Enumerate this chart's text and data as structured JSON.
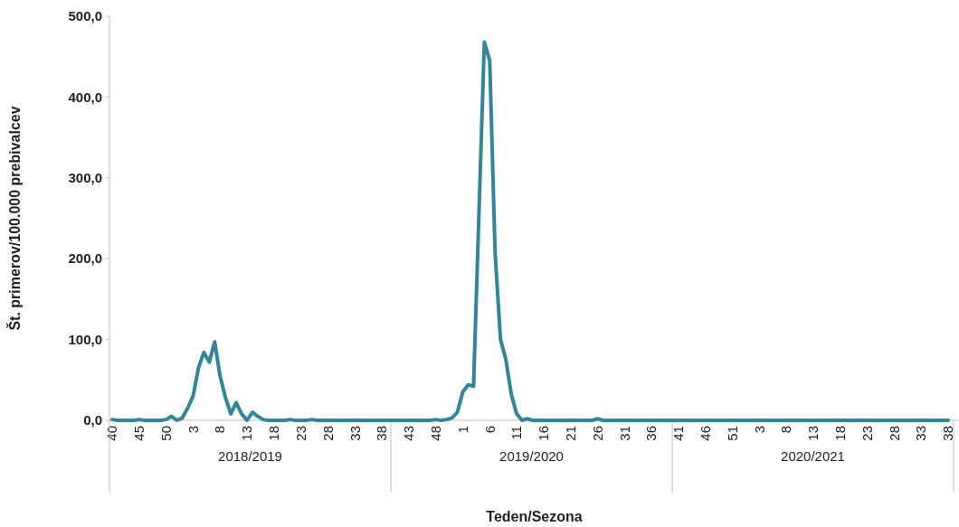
{
  "chart_data": {
    "type": "line",
    "ylabel": "Št. primerov/100.000 prebivalcev",
    "xlabel": "Teden/Sezona",
    "annotations": [
      "2018/2019",
      "2019/2020",
      "2020/2021"
    ],
    "categories": [
      "40",
      null,
      null,
      null,
      null,
      "45",
      null,
      null,
      null,
      null,
      "50",
      null,
      null,
      null,
      null,
      "3",
      null,
      null,
      null,
      null,
      "8",
      null,
      null,
      null,
      null,
      "13",
      null,
      null,
      null,
      null,
      "18",
      null,
      null,
      null,
      null,
      "23",
      null,
      null,
      null,
      null,
      "28",
      null,
      null,
      null,
      null,
      "33",
      null,
      null,
      null,
      null,
      "38",
      null,
      null,
      null,
      null,
      "43",
      null,
      null,
      null,
      null,
      "48",
      null,
      null,
      null,
      null,
      "1",
      null,
      null,
      null,
      null,
      "6",
      null,
      null,
      null,
      null,
      "11",
      null,
      null,
      null,
      null,
      "16",
      null,
      null,
      null,
      null,
      "21",
      null,
      null,
      null,
      null,
      "26",
      null,
      null,
      null,
      null,
      "31",
      null,
      null,
      null,
      null,
      "36",
      null,
      null,
      null,
      null,
      "41",
      null,
      null,
      null,
      null,
      "46",
      null,
      null,
      null,
      null,
      "51",
      null,
      null,
      null,
      null,
      "3",
      null,
      null,
      null,
      null,
      "8",
      null,
      null,
      null,
      null,
      "13",
      null,
      null,
      null,
      null,
      "18",
      null,
      null,
      null,
      null,
      "23",
      null,
      null,
      null,
      null,
      "28",
      null,
      null,
      null,
      null,
      "33",
      null,
      null,
      null,
      null,
      "38"
    ],
    "series": [
      {
        "color": "#31869b",
        "values": [
          1,
          0,
          0,
          0,
          0,
          1,
          0,
          0,
          0,
          0,
          1,
          5,
          0,
          3,
          15,
          30,
          65,
          84,
          72,
          97,
          55,
          28,
          8,
          22,
          8,
          0,
          10,
          5,
          1,
          0,
          0,
          0,
          0,
          1,
          0,
          0,
          0,
          1,
          0,
          0,
          0,
          0,
          0,
          0,
          0,
          0,
          0,
          0,
          0,
          0,
          0,
          0,
          0,
          0,
          0,
          0,
          0,
          0,
          0,
          0,
          1,
          0,
          1,
          3,
          10,
          35,
          44,
          42,
          255,
          468,
          445,
          207,
          100,
          75,
          32,
          8,
          0,
          2,
          0,
          0,
          0,
          0,
          0,
          0,
          0,
          0,
          0,
          0,
          0,
          0,
          2,
          0,
          0,
          0,
          0,
          0,
          0,
          0,
          0,
          0,
          0,
          0,
          0,
          0,
          0,
          0,
          0,
          0,
          0,
          0,
          0,
          0,
          0,
          0,
          0,
          0,
          0,
          0,
          0,
          0,
          0,
          0,
          0,
          0,
          0,
          0,
          0,
          0,
          0,
          0,
          0,
          0,
          0,
          0,
          0,
          0,
          0,
          0,
          0,
          0,
          0,
          0,
          0,
          0,
          0,
          0,
          0,
          0,
          0,
          0,
          0,
          0,
          0,
          0,
          0,
          0
        ]
      }
    ],
    "ylim": [
      0,
      500
    ],
    "yticks": [
      {
        "value": 0,
        "label": "0,0"
      },
      {
        "value": 100,
        "label": "100,0"
      },
      {
        "value": 200,
        "label": "200,0"
      },
      {
        "value": 300,
        "label": "300,0"
      },
      {
        "value": 400,
        "label": "400,0"
      },
      {
        "value": 500,
        "label": "500,0"
      }
    ],
    "grid": false,
    "marker": "none",
    "line_style": "solid"
  }
}
